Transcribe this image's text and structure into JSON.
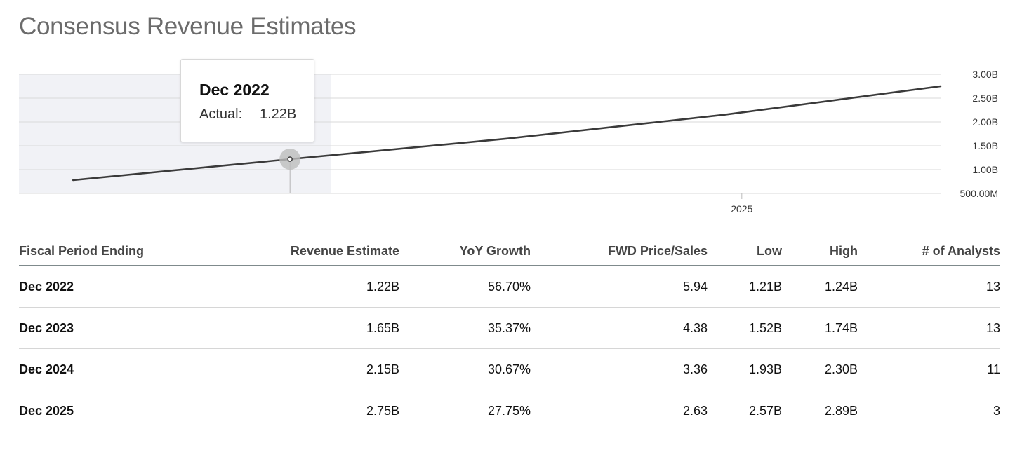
{
  "title": "Consensus Revenue Estimates",
  "tooltip": {
    "period": "Dec 2022",
    "label": "Actual:",
    "value": "1.22B"
  },
  "chart_data": {
    "type": "line",
    "series": [
      {
        "points": [
          {
            "x": "2021-12",
            "y": 0.78
          },
          {
            "x": "2022-12",
            "y": 1.22
          },
          {
            "x": "2023-12",
            "y": 1.65
          },
          {
            "x": "2024-12",
            "y": 2.15
          },
          {
            "x": "2025-12",
            "y": 2.75
          }
        ]
      }
    ],
    "highlight": "2022-12",
    "y_ticks": [
      {
        "value": 3.0,
        "label": "3.00B"
      },
      {
        "value": 2.5,
        "label": "2.50B"
      },
      {
        "value": 2.0,
        "label": "2.00B"
      },
      {
        "value": 1.5,
        "label": "1.50B"
      },
      {
        "value": 1.0,
        "label": "1.00B"
      },
      {
        "value": 0.5,
        "label": "500.00M"
      }
    ],
    "x_ticks": [
      {
        "value": "2025-01",
        "label": "2025"
      }
    ],
    "ylim": [
      0.5,
      3.0
    ],
    "xlim": [
      "2021-09",
      "2025-12"
    ],
    "colors": {
      "line": "#3a3a3a",
      "grid": "#d9d9d9",
      "shade": "#f1f2f6",
      "marker": "#bdbdbd"
    }
  },
  "table": {
    "columns": [
      "Fiscal Period Ending",
      "Revenue Estimate",
      "YoY Growth",
      "FWD Price/Sales",
      "Low",
      "High",
      "# of Analysts"
    ],
    "rows": [
      [
        "Dec 2022",
        "1.22B",
        "56.70%",
        "5.94",
        "1.21B",
        "1.24B",
        "13"
      ],
      [
        "Dec 2023",
        "1.65B",
        "35.37%",
        "4.38",
        "1.52B",
        "1.74B",
        "13"
      ],
      [
        "Dec 2024",
        "2.15B",
        "30.67%",
        "3.36",
        "1.93B",
        "2.30B",
        "11"
      ],
      [
        "Dec 2025",
        "2.75B",
        "27.75%",
        "2.63",
        "2.57B",
        "2.89B",
        "3"
      ]
    ]
  }
}
